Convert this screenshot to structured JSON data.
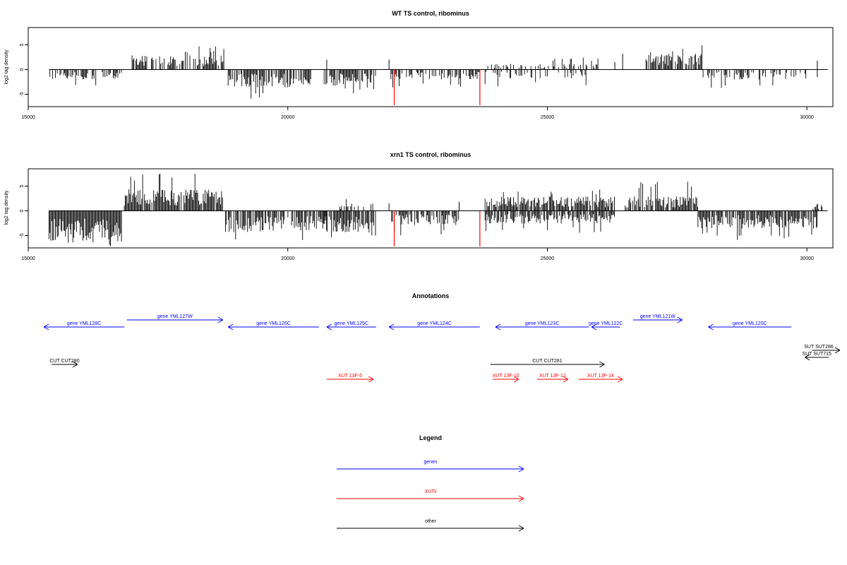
{
  "chart_data": [
    {
      "type": "bar",
      "title": "WT TS control, ribominus",
      "ylabel": "log2 tag density",
      "xlim": [
        15000,
        30500
      ],
      "ylim": [
        -7.5,
        8.5
      ],
      "x_ticks": [
        "15000",
        "20000",
        "25000",
        "30000"
      ],
      "y_ticks": [
        "5",
        "0",
        "-5"
      ],
      "grid": false,
      "baseline_segments": [
        [
          15400,
          30400
        ]
      ],
      "red_markers": [
        {
          "x": 22050,
          "y": -7.2
        },
        {
          "x": 23700,
          "y": -7.2
        }
      ],
      "density_regions": [
        {
          "start": 15400,
          "end": 16800,
          "strand": "minus",
          "typical": -1.4,
          "max": -4.0,
          "density": 0.55
        },
        {
          "start": 17000,
          "end": 18800,
          "strand": "plus",
          "typical": 2.0,
          "max": 4.8,
          "density": 0.7
        },
        {
          "start": 18850,
          "end": 20450,
          "strand": "minus",
          "typical": -2.5,
          "max": -6.0,
          "density": 0.8
        },
        {
          "start": 20700,
          "end": 21700,
          "strand": "minus",
          "typical": -2.3,
          "max": -5.0,
          "density": 0.75
        },
        {
          "start": 21950,
          "end": 23700,
          "strand": "minus",
          "typical": -1.4,
          "max": -4.0,
          "density": 0.6
        },
        {
          "start": 23800,
          "end": 26000,
          "strand": "plus",
          "typical": 0.8,
          "max": 2.5,
          "density": 0.35
        },
        {
          "start": 23800,
          "end": 26000,
          "strand": "minus",
          "typical": -1.2,
          "max": -3.5,
          "density": 0.35
        },
        {
          "start": 26900,
          "end": 28000,
          "strand": "plus",
          "typical": 2.2,
          "max": 5.0,
          "density": 0.75
        },
        {
          "start": 28000,
          "end": 30000,
          "strand": "minus",
          "typical": -1.4,
          "max": -3.8,
          "density": 0.45
        }
      ],
      "isolated_bars": [
        {
          "x": 20750,
          "y": 2.0
        },
        {
          "x": 21950,
          "y": 2.0
        },
        {
          "x": 26300,
          "y": 1.5
        },
        {
          "x": 26450,
          "y": 3.2
        },
        {
          "x": 30200,
          "y": 1.8
        },
        {
          "x": 30200,
          "y": -1.5
        }
      ]
    },
    {
      "type": "bar",
      "title": "xrn1 TS control, ribominus",
      "ylabel": "log2 tag density",
      "xlim": [
        15000,
        30500
      ],
      "ylim": [
        -7.5,
        8.5
      ],
      "x_ticks": [
        "15000",
        "20000",
        "25000",
        "30000"
      ],
      "y_ticks": [
        "5",
        "0",
        "-5"
      ],
      "grid": false,
      "baseline_segments": [
        [
          15400,
          30400
        ]
      ],
      "red_markers": [
        {
          "x": 22050,
          "y": -7.2
        },
        {
          "x": 23700,
          "y": -7.2
        }
      ],
      "density_regions": [
        {
          "start": 15400,
          "end": 16800,
          "strand": "minus",
          "typical": -4.5,
          "max": -7.2,
          "density": 1.0
        },
        {
          "start": 16850,
          "end": 18750,
          "strand": "plus",
          "typical": 3.0,
          "max": 8.0,
          "density": 0.95
        },
        {
          "start": 18800,
          "end": 20800,
          "strand": "minus",
          "typical": -3.0,
          "max": -6.0,
          "density": 0.85
        },
        {
          "start": 20700,
          "end": 21700,
          "strand": "minus",
          "typical": -3.0,
          "max": -6.0,
          "density": 0.85
        },
        {
          "start": 21000,
          "end": 21700,
          "strand": "plus",
          "typical": 1.0,
          "max": 2.6,
          "density": 0.3
        },
        {
          "start": 22000,
          "end": 23300,
          "strand": "minus",
          "typical": -2.0,
          "max": -5.0,
          "density": 0.7
        },
        {
          "start": 23800,
          "end": 26300,
          "strand": "plus",
          "typical": 2.0,
          "max": 4.3,
          "density": 0.9
        },
        {
          "start": 23800,
          "end": 26300,
          "strand": "minus",
          "typical": -1.8,
          "max": -4.5,
          "density": 0.8
        },
        {
          "start": 26500,
          "end": 27900,
          "strand": "plus",
          "typical": 2.0,
          "max": 6.5,
          "density": 0.85
        },
        {
          "start": 27900,
          "end": 30200,
          "strand": "minus",
          "typical": -2.5,
          "max": -6.0,
          "density": 0.85
        },
        {
          "start": 30100,
          "end": 30350,
          "strand": "plus",
          "typical": 1.0,
          "max": 2.5,
          "density": 0.5
        }
      ],
      "isolated_bars": [
        {
          "x": 21950,
          "y": 1.5
        },
        {
          "x": 23300,
          "y": 1.8
        }
      ]
    }
  ],
  "annotations": {
    "title": "Annotations",
    "xlim": [
      15000,
      30500
    ],
    "genes": [
      {
        "label": "gene YML128C",
        "start": 15300,
        "end": 16850,
        "direction": "left",
        "row": 0
      },
      {
        "label": "gene YML127W",
        "start": 16900,
        "end": 18750,
        "direction": "right",
        "row": 1
      },
      {
        "label": "gene YML126C",
        "start": 18850,
        "end": 20600,
        "direction": "left",
        "row": 0
      },
      {
        "label": "gene YML125C",
        "start": 20750,
        "end": 21700,
        "direction": "left",
        "row": 0
      },
      {
        "label": "gene YML124C",
        "start": 21950,
        "end": 23700,
        "direction": "left",
        "row": 0
      },
      {
        "label": "gene YML123C",
        "start": 24000,
        "end": 25800,
        "direction": "left",
        "row": 0
      },
      {
        "label": "gene YML122C",
        "start": 25850,
        "end": 26400,
        "direction": "left",
        "row": 0
      },
      {
        "label": "gene YML121W",
        "start": 26650,
        "end": 27600,
        "direction": "right",
        "row": 1
      },
      {
        "label": "gene YML120C",
        "start": 28100,
        "end": 29700,
        "direction": "left",
        "row": 0
      }
    ],
    "xuts": [
      {
        "label": "XUT 13F-5",
        "start": 20750,
        "end": 21650,
        "direction": "right"
      },
      {
        "label": "XUT 13F-10",
        "start": 23950,
        "end": 24450,
        "direction": "right"
      },
      {
        "label": "XUT 13F-12",
        "start": 24800,
        "end": 25400,
        "direction": "right"
      },
      {
        "label": "XUT 13F-14",
        "start": 25600,
        "end": 26450,
        "direction": "right"
      }
    ],
    "other": [
      {
        "label": "CUT CUT280",
        "start": 15450,
        "end": 15950,
        "direction": "right",
        "level": 0
      },
      {
        "label": "CUT CUT281",
        "start": 23900,
        "end": 26100,
        "direction": "right",
        "level": 0
      },
      {
        "label": "SUT SUT286",
        "start": 30100,
        "end": 30700,
        "direction": "right",
        "level": -1
      },
      {
        "label": "SUT SUT715",
        "start": 29960,
        "end": 30420,
        "direction": "left",
        "level": -0.5
      }
    ]
  },
  "legend": {
    "title": "Legend",
    "items": [
      {
        "label": "genes",
        "color": "#0000ff"
      },
      {
        "label": "XUTs",
        "color": "#ff0000"
      },
      {
        "label": "other",
        "color": "#000000"
      }
    ]
  },
  "colors": {
    "bar": "#000000",
    "marker": "#ff0000",
    "genes": "#0000ff",
    "xuts": "#ff0000",
    "other": "#000000"
  }
}
